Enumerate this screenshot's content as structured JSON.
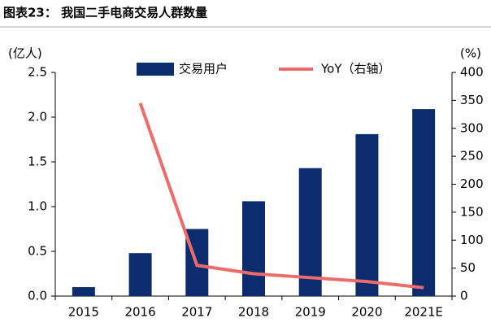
{
  "chart_data": {
    "type": "bar",
    "title": "图表23：  我国二手电商交易人群数量",
    "y_unit": "(亿人)",
    "y2_unit": "(%)",
    "categories": [
      "2015",
      "2016",
      "2017",
      "2018",
      "2019",
      "2020",
      "2021E"
    ],
    "series": [
      {
        "name": "交易用户",
        "type": "bar",
        "color": "#0c2c6e",
        "values": [
          0.1,
          0.48,
          0.75,
          1.06,
          1.43,
          1.81,
          2.09
        ]
      },
      {
        "name": "YoY（右轴）",
        "type": "line",
        "axis": "y2",
        "color": "#ee6b6b",
        "values": [
          null,
          345,
          55,
          40,
          33,
          26,
          15
        ]
      }
    ],
    "ylim": [
      0,
      2.5
    ],
    "yticks": [
      {
        "value": 0,
        "label": "0.0"
      },
      0.5,
      {
        "value": 1,
        "label": "1.0"
      },
      1.5,
      {
        "value": 2,
        "label": "2.0"
      },
      2.5
    ],
    "y2lim": [
      0,
      400
    ],
    "y2ticks": [
      0,
      50,
      100,
      150,
      200,
      250,
      300,
      350,
      400
    ],
    "legend": "top"
  }
}
